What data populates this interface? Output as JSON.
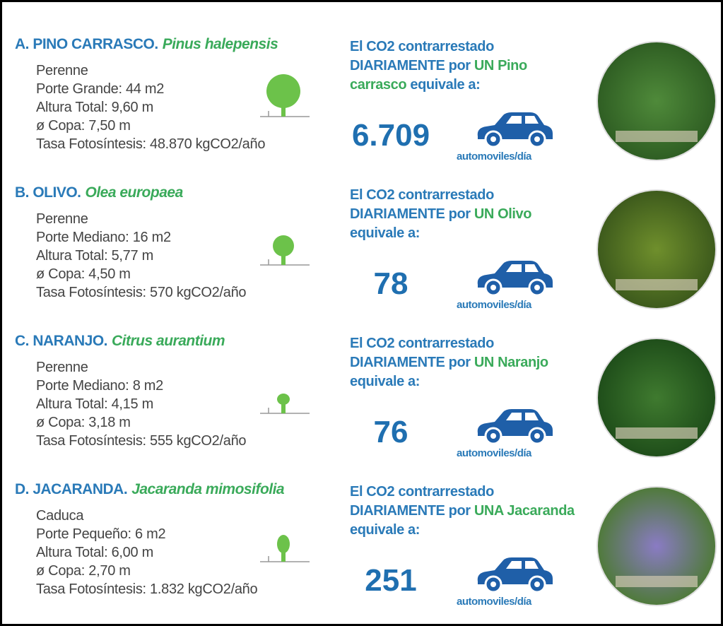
{
  "items": [
    {
      "title": "A. PINO CARRASCO.",
      "scientific": "Pinus halepensis",
      "attributes": [
        "Perenne",
        "Porte Grande: 44 m2",
        "Altura Total: 9,60 m",
        "ø Copa: 7,50 m",
        "Tasa Fotosíntesis: 48.870 kgCO2/año"
      ],
      "co2_intro": "El CO2 contrarrestado DIARIAMENTE por",
      "co2_highlight": "UN Pino carrasco",
      "co2_outro": "equivale a:",
      "cars": "6.709",
      "cars_unit": "automoviles/día"
    },
    {
      "title": "B. OLIVO.",
      "scientific": "Olea europaea",
      "attributes": [
        "Perenne",
        "Porte Mediano: 16 m2",
        "Altura Total: 5,77 m",
        "ø Copa: 4,50 m",
        "Tasa Fotosíntesis: 570 kgCO2/año"
      ],
      "co2_intro": "El CO2 contrarrestado DIARIAMENTE por",
      "co2_highlight": "UN Olivo",
      "co2_outro": "equivale a:",
      "cars": "78",
      "cars_unit": "automoviles/día"
    },
    {
      "title": "C. NARANJO.",
      "scientific": "Citrus aurantium",
      "attributes": [
        "Perenne",
        "Porte Mediano: 8 m2",
        "Altura Total: 4,15 m",
        "ø Copa: 3,18 m",
        "Tasa Fotosíntesis: 555 kgCO2/año"
      ],
      "co2_intro": "El CO2 contrarrestado DIARIAMENTE por",
      "co2_highlight": "UN Naranjo",
      "co2_outro": "equivale a:",
      "cars": "76",
      "cars_unit": "automoviles/día"
    },
    {
      "title": "D. JACARANDA.",
      "scientific": "Jacaranda mimosifolia",
      "attributes": [
        "Caduca",
        "Porte Pequeño: 6 m2",
        "Altura Total: 6,00 m",
        "ø Copa: 2,70 m",
        "Tasa Fotosíntesis: 1.832 kgCO2/año"
      ],
      "co2_intro": "El CO2 contrarrestado DIARIAMENTE por",
      "co2_highlight": "UNA Jacaranda",
      "co2_outro": "equivale a:",
      "cars": "251",
      "cars_unit": "automoviles/día"
    }
  ]
}
